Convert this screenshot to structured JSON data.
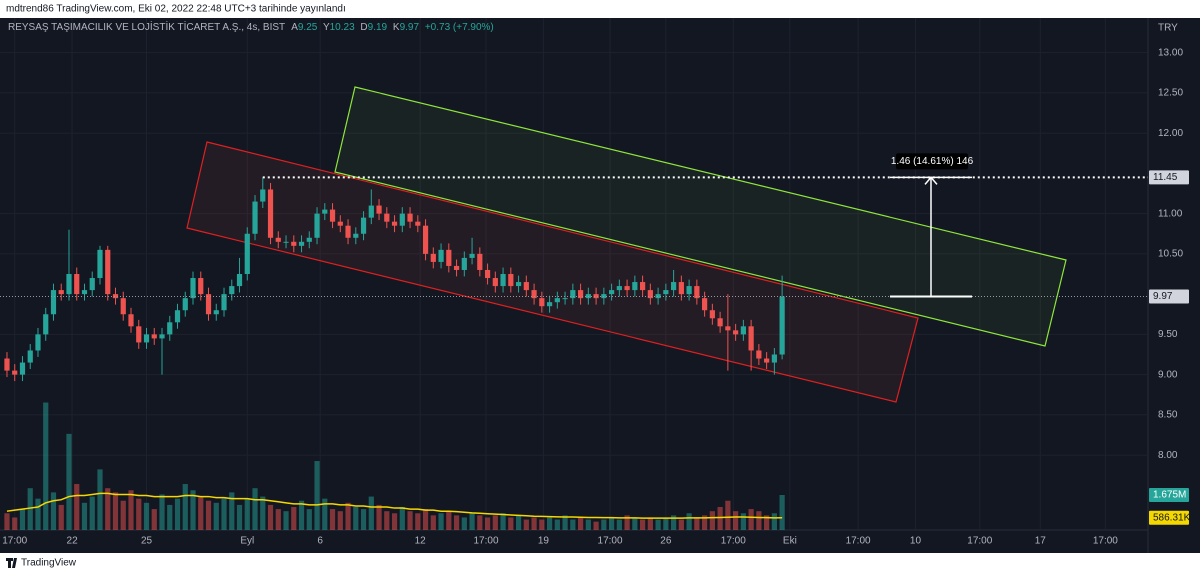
{
  "chart_data": {
    "type": "candlestick",
    "header": "mdtrend86 TradingView.com, Eki 02, 2022 22:48 UTC+3 tarihinde yayınlandı",
    "symbol": "REYSAŞ TAŞIMACILIK VE LOJİSTİK TİCARET A.Ş., 4s, BIST",
    "legend_keys": [
      "A",
      "Y",
      "D",
      "K"
    ],
    "legend_change": "+0.73 (+7.90%)",
    "currency": "TRY",
    "brand": "TradingView",
    "measure_label": "1.46 (14.61%) 146",
    "measure_target": 11.45,
    "last_price": 9.97,
    "volume_last_label": "1.675M",
    "ma_last_label": "586.31K",
    "up_color": "#26a69a",
    "down_color": "#ef5350",
    "ma_color": "#f5d800",
    "xlim": [
      -0.9,
      147.2
    ],
    "ylim": [
      7.07,
      13.43
    ],
    "volume_ylim": [
      0,
      24.5
    ],
    "yticks": [
      {
        "value": 8,
        "label": "8.00"
      },
      {
        "value": 8.5,
        "label": "8.50"
      },
      {
        "value": 9,
        "label": "9.00"
      },
      {
        "value": 9.5,
        "label": "9.50"
      },
      {
        "value": 10.5,
        "label": "10.50"
      },
      {
        "value": 11,
        "label": "11.00"
      },
      {
        "value": 12,
        "label": "12.00"
      },
      {
        "value": 12.5,
        "label": "12.50"
      },
      {
        "value": 13,
        "label": "13.00"
      }
    ],
    "xticks": [
      {
        "value": 1,
        "label": "17:00"
      },
      {
        "value": 8.4,
        "label": "22"
      },
      {
        "value": 18,
        "label": "25"
      },
      {
        "value": 31,
        "label": "Eyl"
      },
      {
        "value": 40.4,
        "label": "6"
      },
      {
        "value": 53.3,
        "label": "12"
      },
      {
        "value": 61.8,
        "label": "17:00"
      },
      {
        "value": 69.2,
        "label": "19"
      },
      {
        "value": 77.8,
        "label": "17:00"
      },
      {
        "value": 85,
        "label": "26"
      },
      {
        "value": 93.7,
        "label": "17:00"
      },
      {
        "value": 101,
        "label": "Eki"
      },
      {
        "value": 109.8,
        "label": "17:00"
      },
      {
        "value": 117.2,
        "label": "10"
      },
      {
        "value": 125.5,
        "label": "17:00"
      },
      {
        "value": 133.3,
        "label": "17"
      },
      {
        "value": 141.7,
        "label": "17:00"
      }
    ],
    "open": [
      9.2,
      9.05,
      9.0,
      9.15,
      9.3,
      9.5,
      9.75,
      10.05,
      10.0,
      10.25,
      10.0,
      10.05,
      10.2,
      10.55,
      10.0,
      9.95,
      9.75,
      9.6,
      9.4,
      9.5,
      9.45,
      9.5,
      9.65,
      9.8,
      9.95,
      10.2,
      10.0,
      9.75,
      9.8,
      10.0,
      10.1,
      10.25,
      10.75,
      11.15,
      11.3,
      10.7,
      10.65,
      10.65,
      10.6,
      10.65,
      10.7,
      11.0,
      11.05,
      10.9,
      10.85,
      10.7,
      10.75,
      10.95,
      11.1,
      11.0,
      10.9,
      10.85,
      11.0,
      10.9,
      10.85,
      10.5,
      10.4,
      10.55,
      10.35,
      10.3,
      10.45,
      10.5,
      10.3,
      10.2,
      10.1,
      10.25,
      10.1,
      10.15,
      10.05,
      9.95,
      9.85,
      9.9,
      9.95,
      9.95,
      10.05,
      9.95,
      10.0,
      9.95,
      10.0,
      10.05,
      10.1,
      10.05,
      10.15,
      10.05,
      9.95,
      10.0,
      10.05,
      10.15,
      10.0,
      10.1,
      9.95,
      9.8,
      9.7,
      9.6,
      9.55,
      9.5,
      9.6,
      9.3,
      9.2,
      9.15,
      9.25
    ],
    "high": [
      9.28,
      9.13,
      9.23,
      9.38,
      9.58,
      9.83,
      10.13,
      10.13,
      10.8,
      10.33,
      10.13,
      10.28,
      10.6,
      10.6,
      10.08,
      10.03,
      9.83,
      9.68,
      9.58,
      9.58,
      9.58,
      9.73,
      9.88,
      10.03,
      10.28,
      10.28,
      10.08,
      9.88,
      10.08,
      10.18,
      10.45,
      10.83,
      11.23,
      11.45,
      11.38,
      10.78,
      10.73,
      10.73,
      10.73,
      10.78,
      11.08,
      11.13,
      11.13,
      10.98,
      10.93,
      10.83,
      11.03,
      11.3,
      11.18,
      11.08,
      10.98,
      11.08,
      11.08,
      10.98,
      10.93,
      10.58,
      10.63,
      10.63,
      10.43,
      10.53,
      10.7,
      10.58,
      10.38,
      10.28,
      10.33,
      10.33,
      10.23,
      10.23,
      10.13,
      10.03,
      9.98,
      10.03,
      10.03,
      10.13,
      10.13,
      10.08,
      10.08,
      10.08,
      10.13,
      10.18,
      10.18,
      10.23,
      10.23,
      10.13,
      10.08,
      10.13,
      10.3,
      10.23,
      10.18,
      10.18,
      10.03,
      9.88,
      9.78,
      10.0,
      9.63,
      9.68,
      9.68,
      9.38,
      9.28,
      9.33,
      10.23
    ],
    "low": [
      8.97,
      8.92,
      8.92,
      9.07,
      9.22,
      9.42,
      9.67,
      9.92,
      9.92,
      9.92,
      9.92,
      9.97,
      10.12,
      9.92,
      9.87,
      9.67,
      9.52,
      9.32,
      9.32,
      9.37,
      9.0,
      9.42,
      9.57,
      9.72,
      9.87,
      9.92,
      9.67,
      9.67,
      9.72,
      9.92,
      10.02,
      10.17,
      10.67,
      11.07,
      10.62,
      10.57,
      10.57,
      10.52,
      10.52,
      10.57,
      10.62,
      10.92,
      10.82,
      10.77,
      10.62,
      10.62,
      10.67,
      10.87,
      10.92,
      10.82,
      10.77,
      10.77,
      10.82,
      10.77,
      10.42,
      10.32,
      10.32,
      10.27,
      10.22,
      10.22,
      10.37,
      10.22,
      10.12,
      10.02,
      10.02,
      10.02,
      10.02,
      9.97,
      9.87,
      9.77,
      9.77,
      9.82,
      9.87,
      9.87,
      9.87,
      9.87,
      9.87,
      9.87,
      9.92,
      9.97,
      9.97,
      9.97,
      9.97,
      9.87,
      9.87,
      9.92,
      9.97,
      9.92,
      9.92,
      9.87,
      9.72,
      9.62,
      9.52,
      9.05,
      9.42,
      9.42,
      9.05,
      9.12,
      9.07,
      9.0,
      9.19
    ],
    "close": [
      9.05,
      9.0,
      9.15,
      9.3,
      9.5,
      9.75,
      10.05,
      10.0,
      10.25,
      10.0,
      10.05,
      10.2,
      10.55,
      10.0,
      9.95,
      9.75,
      9.6,
      9.4,
      9.5,
      9.45,
      9.5,
      9.65,
      9.8,
      9.95,
      10.2,
      10.0,
      9.75,
      9.8,
      10.0,
      10.1,
      10.25,
      10.75,
      11.15,
      11.3,
      10.7,
      10.65,
      10.65,
      10.6,
      10.65,
      10.7,
      11.0,
      11.05,
      10.9,
      10.85,
      10.7,
      10.75,
      10.95,
      11.1,
      11.0,
      10.9,
      10.85,
      11.0,
      10.9,
      10.85,
      10.5,
      10.4,
      10.55,
      10.35,
      10.3,
      10.45,
      10.5,
      10.3,
      10.2,
      10.1,
      10.25,
      10.1,
      10.15,
      10.05,
      9.95,
      9.85,
      9.9,
      9.95,
      9.95,
      10.05,
      9.95,
      10.0,
      9.95,
      10.0,
      10.05,
      10.1,
      10.05,
      10.15,
      10.05,
      9.95,
      10.0,
      10.05,
      10.15,
      10.0,
      10.1,
      9.95,
      9.8,
      9.7,
      9.6,
      9.55,
      9.5,
      9.6,
      9.3,
      9.2,
      9.15,
      9.25,
      9.97
    ],
    "volume": [
      0.8,
      0.6,
      1.0,
      2.0,
      1.5,
      6.1,
      1.8,
      1.2,
      4.6,
      2.2,
      1.3,
      1.6,
      2.9,
      2.0,
      1.8,
      1.4,
      1.9,
      1.5,
      1.3,
      1.0,
      1.7,
      1.2,
      1.5,
      2.2,
      1.9,
      1.6,
      1.4,
      1.3,
      1.5,
      1.8,
      1.2,
      1.5,
      2.0,
      1.6,
      1.2,
      1.0,
      0.9,
      1.1,
      1.4,
      1.0,
      3.3,
      1.5,
      1.0,
      0.9,
      1.3,
      1.1,
      1.0,
      1.6,
      1.2,
      0.9,
      0.8,
      1.1,
      0.9,
      0.8,
      1.0,
      0.7,
      0.8,
      0.9,
      0.7,
      0.6,
      0.8,
      0.7,
      0.6,
      0.7,
      0.8,
      0.6,
      0.7,
      0.5,
      0.6,
      0.5,
      0.6,
      0.5,
      0.7,
      0.5,
      0.6,
      0.5,
      0.4,
      0.5,
      0.6,
      0.5,
      0.7,
      0.6,
      0.5,
      0.6,
      0.5,
      0.6,
      0.7,
      0.5,
      0.8,
      0.6,
      0.7,
      0.9,
      1.1,
      1.4,
      0.9,
      0.8,
      1.0,
      0.9,
      0.7,
      0.8,
      1.675
    ],
    "volume_ma": [
      0.9,
      0.95,
      1.0,
      1.05,
      1.1,
      1.3,
      1.4,
      1.45,
      1.6,
      1.65,
      1.65,
      1.7,
      1.75,
      1.75,
      1.7,
      1.7,
      1.7,
      1.65,
      1.65,
      1.6,
      1.6,
      1.6,
      1.6,
      1.65,
      1.65,
      1.6,
      1.6,
      1.55,
      1.55,
      1.5,
      1.5,
      1.5,
      1.45,
      1.45,
      1.4,
      1.35,
      1.3,
      1.25,
      1.25,
      1.2,
      1.2,
      1.25,
      1.25,
      1.2,
      1.2,
      1.15,
      1.15,
      1.1,
      1.1,
      1.1,
      1.05,
      1.05,
      1.0,
      1.0,
      0.95,
      0.95,
      0.9,
      0.9,
      0.88,
      0.85,
      0.82,
      0.8,
      0.78,
      0.76,
      0.74,
      0.72,
      0.7,
      0.68,
      0.66,
      0.65,
      0.64,
      0.63,
      0.62,
      0.62,
      0.61,
      0.6,
      0.6,
      0.59,
      0.59,
      0.58,
      0.58,
      0.58,
      0.57,
      0.57,
      0.57,
      0.57,
      0.57,
      0.57,
      0.58,
      0.58,
      0.58,
      0.59,
      0.6,
      0.61,
      0.62,
      0.62,
      0.61,
      0.6,
      0.59,
      0.58,
      0.58631
    ]
  }
}
